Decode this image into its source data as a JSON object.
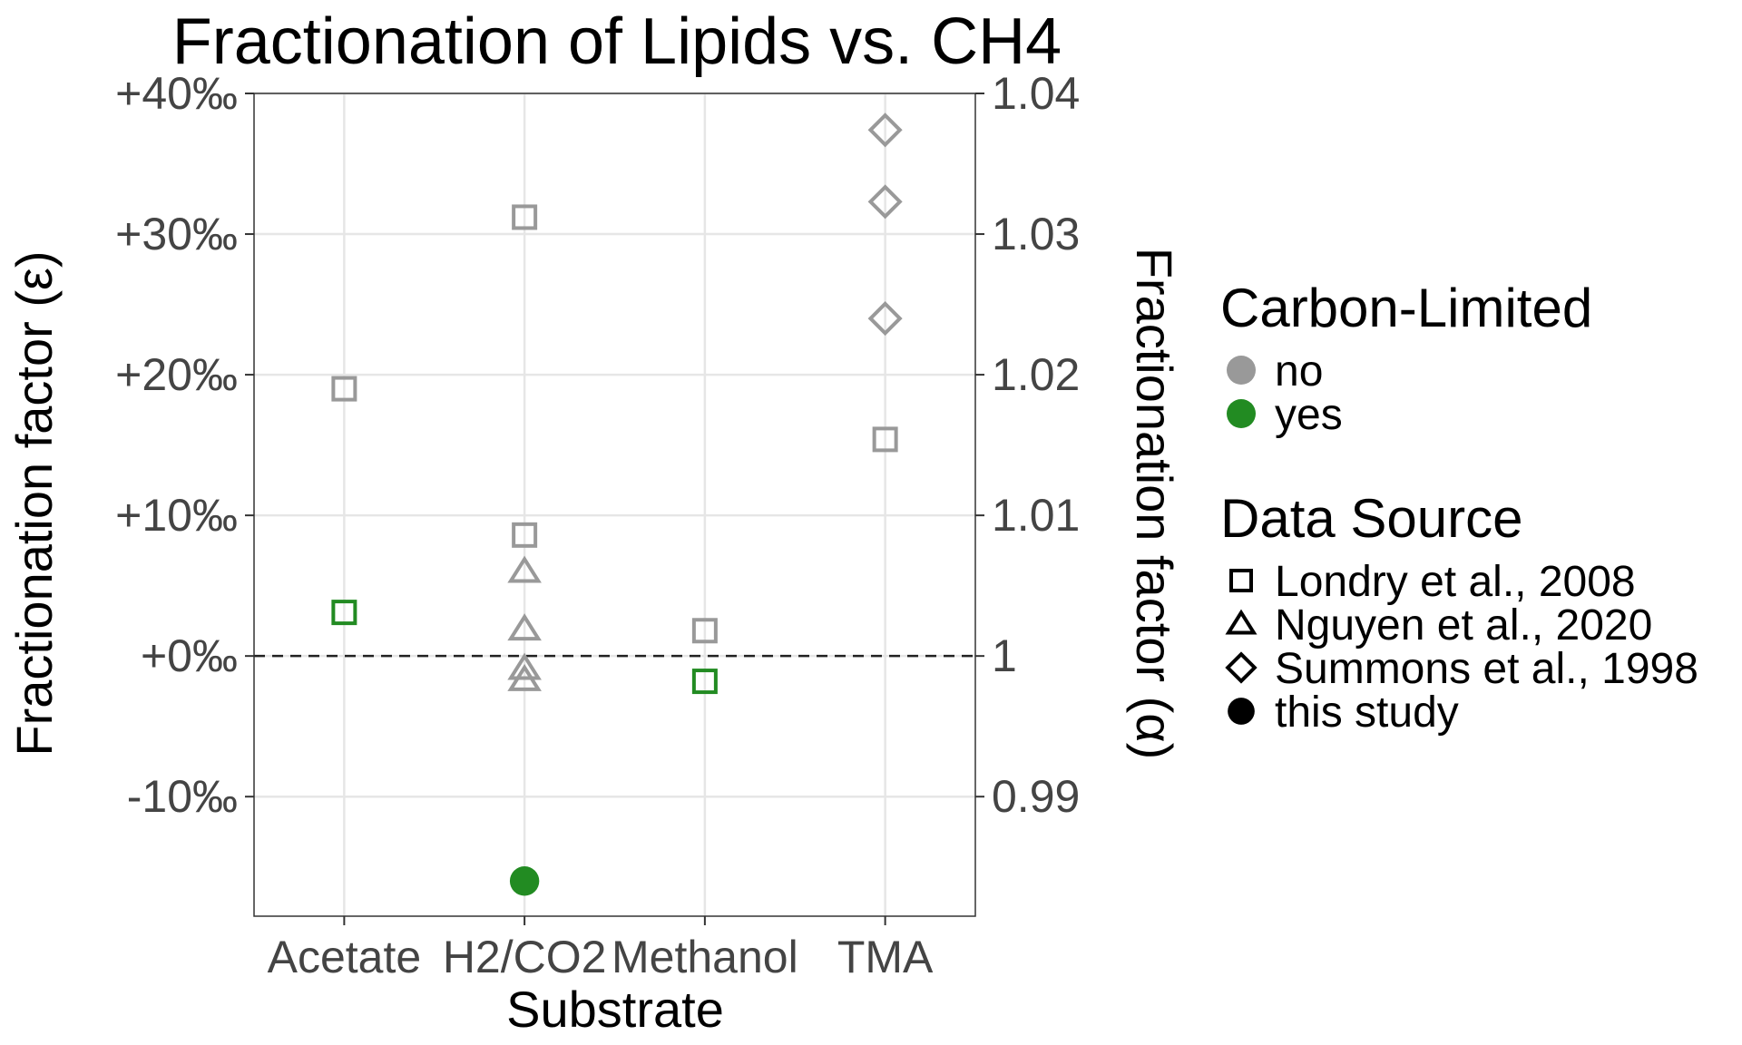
{
  "chart_data": {
    "type": "scatter",
    "title": "Fractionation of Lipids vs. CH4",
    "xlabel": "Substrate",
    "ylabel": "Fractionation factor (ε)",
    "y2label": "Fractionation factor (α)",
    "categories": [
      "Acetate",
      "H2/CO2",
      "Methanol",
      "TMA"
    ],
    "ylim": [
      -18.5,
      40
    ],
    "yticks": [
      {
        "value": -10,
        "label": "-10‰"
      },
      {
        "value": 0,
        "label": "+0‰"
      },
      {
        "value": 10,
        "label": "+10‰"
      },
      {
        "value": 20,
        "label": "+20‰"
      },
      {
        "value": 30,
        "label": "+30‰"
      },
      {
        "value": 40,
        "label": "+40‰"
      }
    ],
    "y2ticks": [
      {
        "value": -10,
        "label": "0.99"
      },
      {
        "value": 0,
        "label": "1"
      },
      {
        "value": 10,
        "label": "1.01"
      },
      {
        "value": 20,
        "label": "1.02"
      },
      {
        "value": 30,
        "label": "1.03"
      },
      {
        "value": 40,
        "label": "1.04"
      }
    ],
    "reference_line": {
      "y": 0,
      "style": "dashed"
    },
    "grid": true,
    "legend_position": "right",
    "colors": {
      "no": "#999999",
      "yes": "#228B22"
    },
    "legends": [
      {
        "title": "Carbon-Limited",
        "entries": [
          {
            "label": "no",
            "color": "no"
          },
          {
            "label": "yes",
            "color": "yes"
          }
        ]
      },
      {
        "title": "Data Source",
        "entries": [
          {
            "label": "Londry et al., 2008",
            "shape": "square"
          },
          {
            "label": "Nguyen et al., 2020",
            "shape": "triangle"
          },
          {
            "label": "Summons et al., 1998",
            "shape": "diamond"
          },
          {
            "label": "this study",
            "shape": "circle"
          }
        ]
      }
    ],
    "points": [
      {
        "x": "Acetate",
        "y": 19.0,
        "shape": "square",
        "carbon_limited": "no"
      },
      {
        "x": "Acetate",
        "y": 3.1,
        "shape": "square",
        "carbon_limited": "yes"
      },
      {
        "x": "H2/CO2",
        "y": 31.2,
        "shape": "square",
        "carbon_limited": "no"
      },
      {
        "x": "H2/CO2",
        "y": 8.6,
        "shape": "square",
        "carbon_limited": "no"
      },
      {
        "x": "H2/CO2",
        "y": 6.0,
        "shape": "triangle",
        "carbon_limited": "no"
      },
      {
        "x": "H2/CO2",
        "y": 1.9,
        "shape": "triangle",
        "carbon_limited": "no"
      },
      {
        "x": "H2/CO2",
        "y": -0.9,
        "shape": "triangle",
        "carbon_limited": "no"
      },
      {
        "x": "H2/CO2",
        "y": -1.7,
        "shape": "triangle",
        "carbon_limited": "no"
      },
      {
        "x": "H2/CO2",
        "y": -16.0,
        "shape": "circle",
        "carbon_limited": "yes"
      },
      {
        "x": "Methanol",
        "y": 1.8,
        "shape": "square",
        "carbon_limited": "no"
      },
      {
        "x": "Methanol",
        "y": -1.8,
        "shape": "square",
        "carbon_limited": "yes"
      },
      {
        "x": "TMA",
        "y": 37.4,
        "shape": "diamond",
        "carbon_limited": "no"
      },
      {
        "x": "TMA",
        "y": 32.3,
        "shape": "diamond",
        "carbon_limited": "no"
      },
      {
        "x": "TMA",
        "y": 24.0,
        "shape": "diamond",
        "carbon_limited": "no"
      },
      {
        "x": "TMA",
        "y": 15.4,
        "shape": "square",
        "carbon_limited": "no"
      }
    ]
  }
}
